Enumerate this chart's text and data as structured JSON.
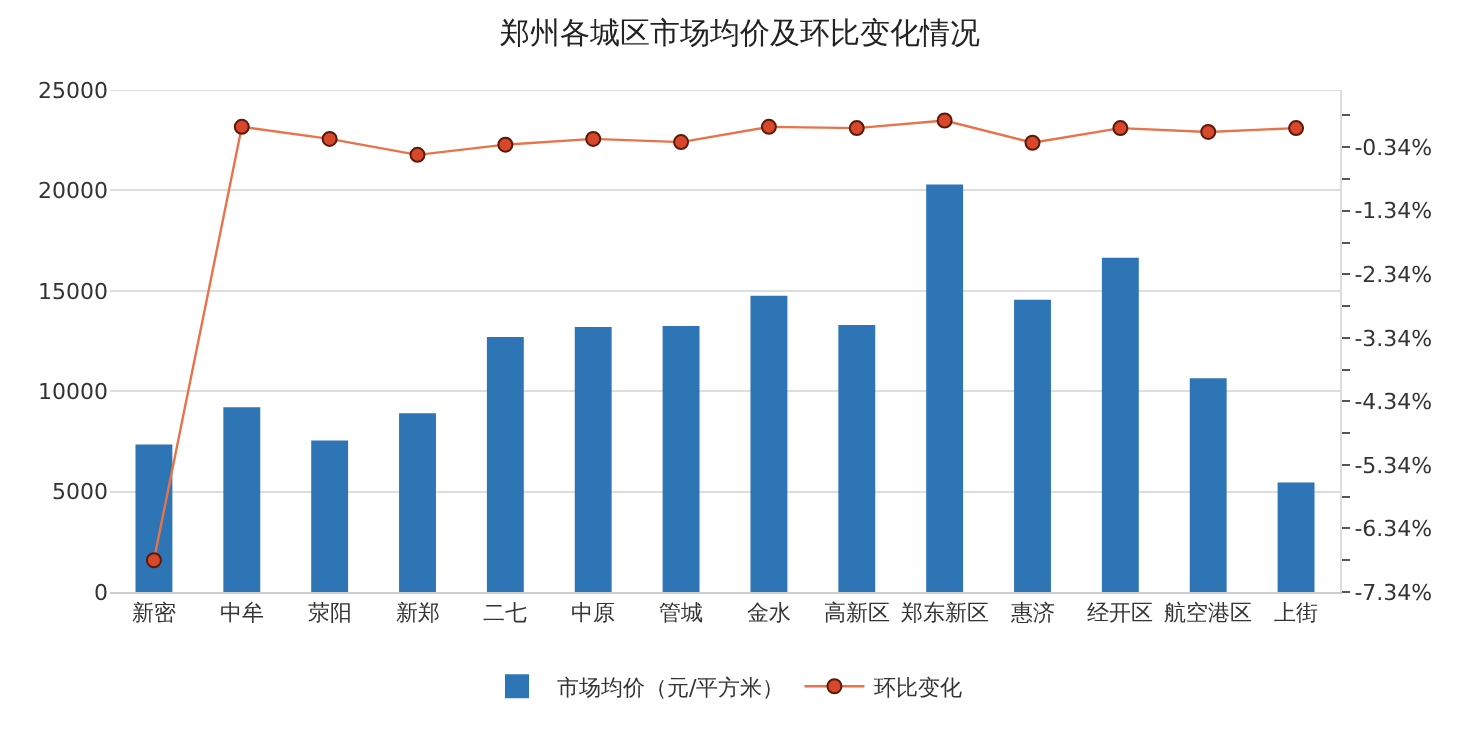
{
  "chart_data": {
    "type": "bar",
    "title": "郑州各城区市场均价及环比变化情况",
    "categories": [
      "新密",
      "中牟",
      "荥阳",
      "新郑",
      "二七",
      "中原",
      "管城",
      "金水",
      "高新区",
      "郑东新区",
      "惠济",
      "经开区",
      "航空港区",
      "上街"
    ],
    "series": [
      {
        "name": "市场均价（元/平方米）",
        "color": "#2e75b6",
        "values": [
          7350,
          9200,
          7550,
          8900,
          12700,
          13200,
          13250,
          14750,
          13300,
          20300,
          14550,
          16650,
          10650,
          5450
        ]
      },
      {
        "name": "环比变化",
        "type": "line",
        "axis": "y2",
        "color": "#e8734a",
        "marker": "circle",
        "values": [
          -6.84,
          -0.02,
          -0.21,
          -0.46,
          -0.3,
          -0.21,
          -0.26,
          -0.02,
          -0.04,
          0.08,
          -0.27,
          -0.04,
          -0.1,
          -0.04
        ]
      }
    ],
    "ylim": [
      0,
      25000
    ],
    "yticks": [
      0,
      5000,
      10000,
      15000,
      20000,
      25000
    ],
    "y2lim": [
      -7.34,
      0.56
    ],
    "y2ticks": [
      {
        "value": 0.16,
        "label": null
      },
      {
        "value": -0.34,
        "label": "-0.34%"
      },
      {
        "value": -0.84,
        "label": null
      },
      {
        "value": -1.34,
        "label": "-1.34%"
      },
      {
        "value": -1.84,
        "label": null
      },
      {
        "value": -2.34,
        "label": "-2.34%"
      },
      {
        "value": -2.84,
        "label": null
      },
      {
        "value": -3.34,
        "label": "-3.34%"
      },
      {
        "value": -3.84,
        "label": null
      },
      {
        "value": -4.34,
        "label": "-4.34%"
      },
      {
        "value": -4.84,
        "label": null
      },
      {
        "value": -5.34,
        "label": "-5.34%"
      },
      {
        "value": -5.84,
        "label": null
      },
      {
        "value": -6.34,
        "label": "-6.34%"
      },
      {
        "value": -6.84,
        "label": null
      },
      {
        "value": -7.34,
        "label": "-7.34%"
      }
    ],
    "grid": "y",
    "legend": "bottom"
  }
}
